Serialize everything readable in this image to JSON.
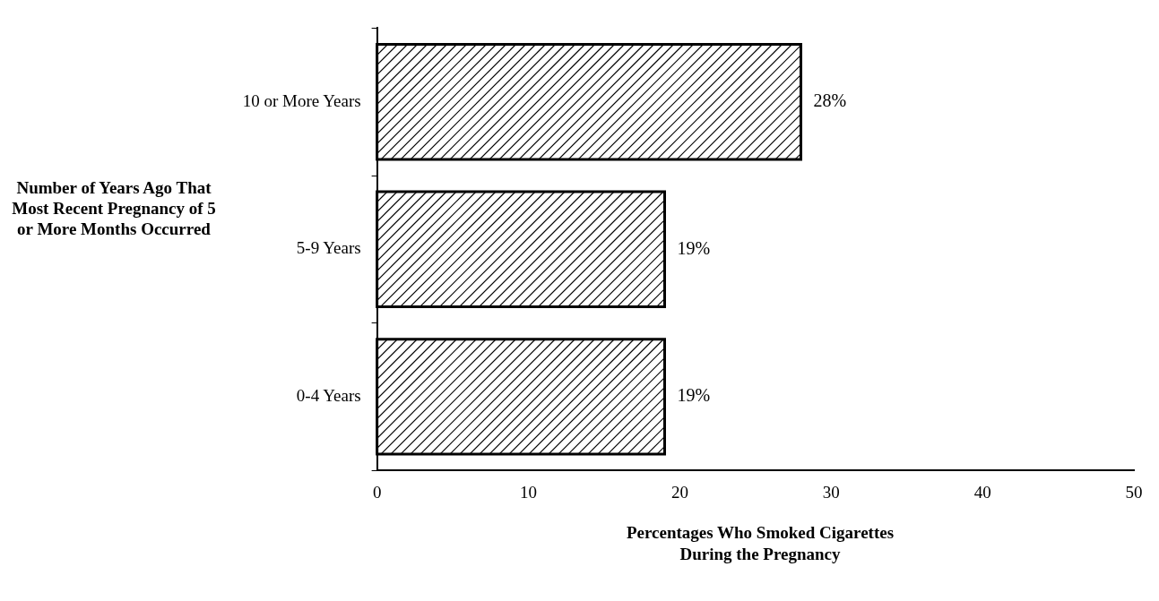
{
  "chart_data": {
    "type": "bar",
    "orientation": "horizontal",
    "xlabel": "Percentages Who Smoked Cigarettes During the Pregnancy",
    "ylabel": "Number of Years Ago That Most Recent Pregnancy of 5 or More Months Occurred",
    "categories": [
      "10 or More Years",
      "5-9 Years",
      "0-4 Years"
    ],
    "values": [
      28,
      19,
      19
    ],
    "value_labels": [
      "28%",
      "19%",
      "19%"
    ],
    "color": "#000000",
    "xlim": [
      0,
      50
    ],
    "xticks": [
      0,
      10,
      20,
      30,
      40,
      50
    ],
    "grid": false,
    "legend": false
  }
}
